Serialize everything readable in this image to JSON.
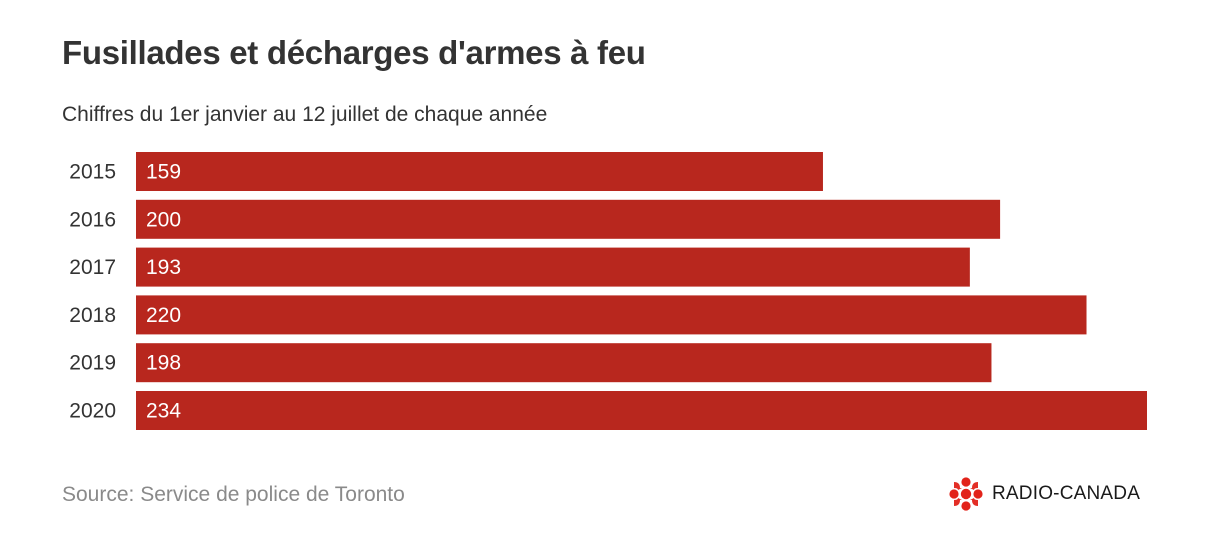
{
  "title": "Fusillades et décharges d'armes à feu",
  "subtitle": "Chiffres du 1er janvier au 12 juillet de chaque année",
  "source": "Source: Service de police de Toronto",
  "logo_text": "RADIO-CANADA",
  "colors": {
    "bar": "#b8271e",
    "label": "#ffffff",
    "text": "#333333",
    "logo": "#e2231a"
  },
  "chart_data": {
    "type": "bar",
    "orientation": "horizontal",
    "categories": [
      "2015",
      "2016",
      "2017",
      "2018",
      "2019",
      "2020"
    ],
    "values": [
      159,
      200,
      193,
      220,
      198,
      234
    ],
    "title": "Fusillades et décharges d'armes à feu",
    "subtitle": "Chiffres du 1er janvier au 12 juillet de chaque année",
    "xlim": [
      0,
      234
    ],
    "grid": false,
    "legend": "none"
  }
}
